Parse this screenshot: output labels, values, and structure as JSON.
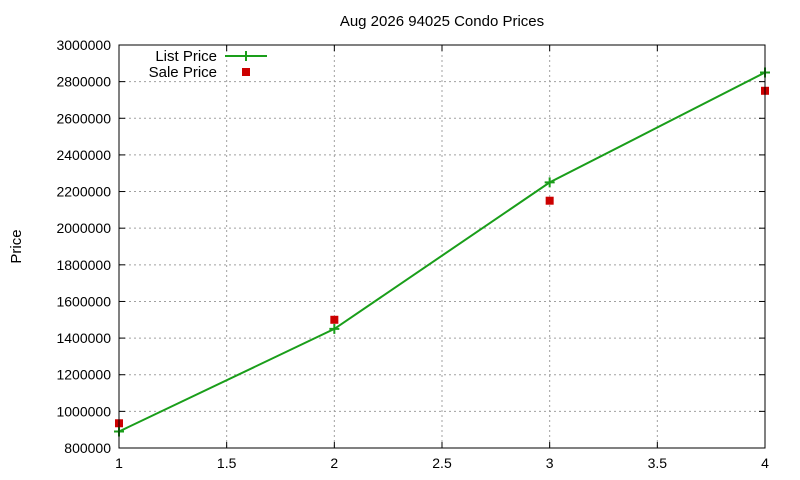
{
  "chart_data": {
    "type": "line",
    "title": "Aug 2026 94025 Condo Prices",
    "xlabel": "",
    "ylabel": "Price",
    "xlim": [
      1,
      4
    ],
    "ylim": [
      800000,
      3000000
    ],
    "x_ticks": [
      "1",
      "1.5",
      "2",
      "2.5",
      "3",
      "3.5",
      "4"
    ],
    "y_ticks": [
      "800000",
      "1000000",
      "1200000",
      "1400000",
      "1600000",
      "1800000",
      "2000000",
      "2200000",
      "2400000",
      "2600000",
      "2800000",
      "3000000"
    ],
    "grid": true,
    "legend_position": "top-left",
    "series": [
      {
        "name": "List Price",
        "style": "line-with-plus-markers",
        "color": "#1a9e1a",
        "x": [
          1,
          2,
          3,
          4
        ],
        "y": [
          890000,
          1450000,
          2250000,
          2850000
        ]
      },
      {
        "name": "Sale Price",
        "style": "square-markers",
        "color": "#cc0000",
        "x": [
          1,
          2,
          3,
          4
        ],
        "y": [
          935000,
          1500000,
          2150000,
          2750000
        ]
      }
    ]
  }
}
